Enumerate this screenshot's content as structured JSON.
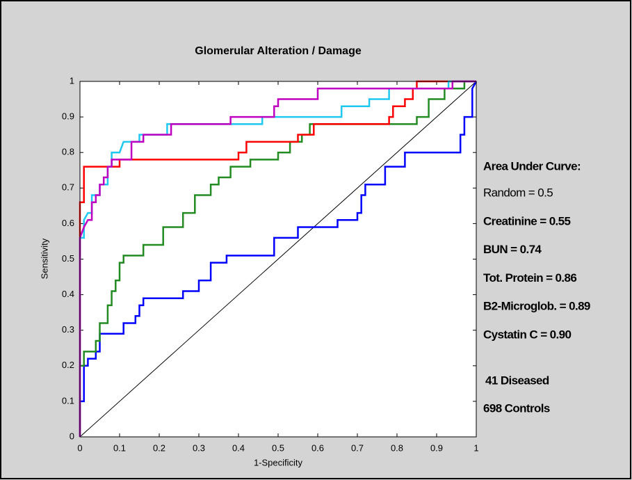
{
  "chart_data": {
    "type": "line",
    "title": "Glomerular Alteration / Damage",
    "xlabel": "1-Specificity",
    "ylabel": "Sensitivity",
    "xlim": [
      0,
      1
    ],
    "ylim": [
      0,
      1
    ],
    "xticks": [
      0,
      0.1,
      0.2,
      0.3,
      0.4,
      0.5,
      0.6,
      0.7,
      0.8,
      0.9,
      1
    ],
    "yticks": [
      0,
      0.1,
      0.2,
      0.3,
      0.4,
      0.5,
      0.6,
      0.7,
      0.8,
      0.9,
      1
    ],
    "legend_title": "Area Under Curve:",
    "annotations": [
      "41 Diseased",
      "698 Controls"
    ],
    "series": [
      {
        "name": "Random = 0.5",
        "color": "#000000",
        "x": [
          0,
          1
        ],
        "values": [
          0,
          1
        ]
      },
      {
        "name": "Creatinine = 0.55",
        "color": "#0000ff",
        "x": [
          0,
          0,
          0.01,
          0.01,
          0.02,
          0.02,
          0.04,
          0.04,
          0.05,
          0.05,
          0.11,
          0.11,
          0.14,
          0.14,
          0.15,
          0.15,
          0.16,
          0.16,
          0.26,
          0.26,
          0.3,
          0.3,
          0.33,
          0.33,
          0.37,
          0.37,
          0.49,
          0.49,
          0.55,
          0.55,
          0.65,
          0.65,
          0.7,
          0.7,
          0.71,
          0.71,
          0.72,
          0.72,
          0.77,
          0.77,
          0.82,
          0.82,
          0.96,
          0.96,
          0.97,
          0.97,
          0.99,
          0.99,
          1
        ],
        "values": [
          0,
          0.1,
          0.1,
          0.2,
          0.2,
          0.22,
          0.22,
          0.24,
          0.24,
          0.29,
          0.29,
          0.32,
          0.32,
          0.34,
          0.34,
          0.37,
          0.37,
          0.39,
          0.39,
          0.41,
          0.41,
          0.44,
          0.44,
          0.49,
          0.49,
          0.51,
          0.51,
          0.56,
          0.56,
          0.59,
          0.59,
          0.61,
          0.61,
          0.63,
          0.63,
          0.68,
          0.68,
          0.71,
          0.71,
          0.76,
          0.76,
          0.8,
          0.8,
          0.85,
          0.85,
          0.9,
          0.9,
          0.98,
          1
        ]
      },
      {
        "name": "BUN = 0.74",
        "color": "#228b22",
        "x": [
          0,
          0,
          0.01,
          0.01,
          0.04,
          0.04,
          0.05,
          0.05,
          0.07,
          0.07,
          0.08,
          0.08,
          0.09,
          0.09,
          0.1,
          0.1,
          0.11,
          0.11,
          0.16,
          0.16,
          0.21,
          0.21,
          0.26,
          0.26,
          0.29,
          0.29,
          0.33,
          0.33,
          0.35,
          0.35,
          0.38,
          0.38,
          0.43,
          0.43,
          0.5,
          0.5,
          0.53,
          0.53,
          0.56,
          0.56,
          0.58,
          0.58,
          0.85,
          0.85,
          0.88,
          0.88,
          0.92,
          0.92,
          0.97,
          0.97,
          1
        ],
        "values": [
          0,
          0.2,
          0.2,
          0.24,
          0.24,
          0.27,
          0.27,
          0.32,
          0.32,
          0.37,
          0.37,
          0.41,
          0.41,
          0.44,
          0.44,
          0.49,
          0.49,
          0.51,
          0.51,
          0.54,
          0.54,
          0.59,
          0.59,
          0.63,
          0.63,
          0.68,
          0.68,
          0.71,
          0.71,
          0.73,
          0.73,
          0.76,
          0.76,
          0.78,
          0.78,
          0.8,
          0.8,
          0.83,
          0.83,
          0.85,
          0.85,
          0.88,
          0.88,
          0.9,
          0.9,
          0.95,
          0.95,
          0.98,
          0.98,
          1,
          1
        ]
      },
      {
        "name": "Tot. Protein = 0.86",
        "color": "#ff0000",
        "x": [
          0,
          0,
          0.01,
          0.01,
          0.1,
          0.1,
          0.4,
          0.4,
          0.42,
          0.42,
          0.55,
          0.55,
          0.59,
          0.59,
          0.78,
          0.78,
          0.79,
          0.79,
          0.82,
          0.82,
          0.84,
          0.84,
          0.85,
          0.85,
          1
        ],
        "values": [
          0,
          0.66,
          0.66,
          0.76,
          0.76,
          0.78,
          0.78,
          0.8,
          0.8,
          0.83,
          0.83,
          0.85,
          0.85,
          0.88,
          0.88,
          0.9,
          0.9,
          0.93,
          0.93,
          0.95,
          0.95,
          0.98,
          0.98,
          1,
          1
        ]
      },
      {
        "name": "B2-Microglob. = 0.89",
        "color": "#1ec8f0",
        "x": [
          0,
          0,
          0.01,
          0.01,
          0.02,
          0.03,
          0.03,
          0.05,
          0.05,
          0.07,
          0.07,
          0.08,
          0.08,
          0.1,
          0.11,
          0.15,
          0.15,
          0.22,
          0.22,
          0.46,
          0.46,
          0.66,
          0.66,
          0.73,
          0.73,
          0.78,
          0.78,
          0.93,
          0.93,
          1
        ],
        "values": [
          0,
          0.56,
          0.56,
          0.61,
          0.63,
          0.63,
          0.68,
          0.68,
          0.71,
          0.71,
          0.76,
          0.76,
          0.8,
          0.8,
          0.83,
          0.83,
          0.85,
          0.85,
          0.88,
          0.88,
          0.9,
          0.9,
          0.93,
          0.93,
          0.95,
          0.95,
          0.98,
          0.98,
          1,
          1
        ]
      },
      {
        "name": "Cystatin C = 0.90",
        "color": "#c000c0",
        "x": [
          0,
          0,
          0.01,
          0.02,
          0.03,
          0.03,
          0.04,
          0.04,
          0.05,
          0.05,
          0.06,
          0.06,
          0.07,
          0.07,
          0.08,
          0.08,
          0.13,
          0.13,
          0.16,
          0.16,
          0.23,
          0.23,
          0.38,
          0.38,
          0.49,
          0.49,
          0.5,
          0.5,
          0.6,
          0.6,
          0.94,
          0.94,
          1
        ],
        "values": [
          0,
          0.56,
          0.59,
          0.61,
          0.61,
          0.66,
          0.66,
          0.68,
          0.68,
          0.71,
          0.71,
          0.73,
          0.73,
          0.76,
          0.76,
          0.78,
          0.78,
          0.83,
          0.83,
          0.85,
          0.85,
          0.88,
          0.88,
          0.9,
          0.9,
          0.93,
          0.93,
          0.95,
          0.95,
          0.98,
          0.98,
          1,
          1
        ]
      }
    ]
  }
}
